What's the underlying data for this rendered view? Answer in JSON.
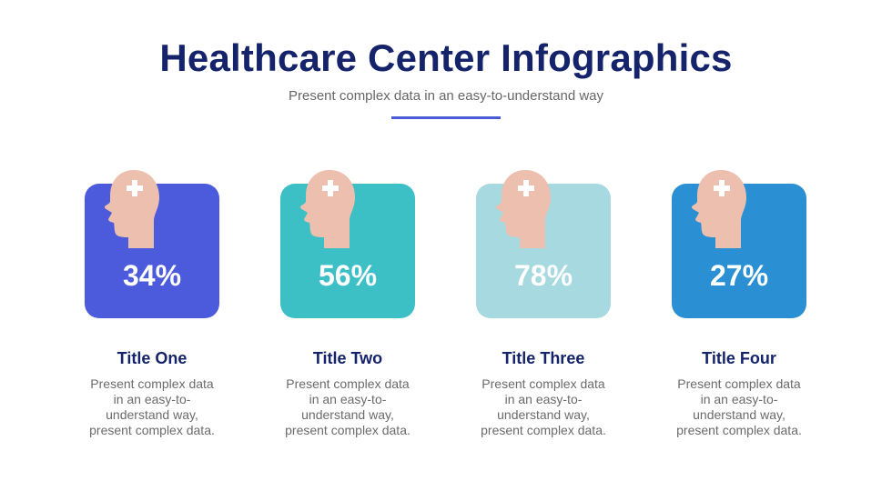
{
  "header": {
    "title": "Healthcare Center Infographics",
    "subtitle": "Present complex data in an easy-to-understand way"
  },
  "colors": {
    "title": "#14236a",
    "accent": "#4b5bd8",
    "head": "#ecbfae",
    "cross": "#ffffff"
  },
  "cards": [
    {
      "percent": "34%",
      "title": "Title One",
      "desc_lines": [
        "Present complex data",
        "in an easy-to-",
        "understand way,",
        "present complex data."
      ],
      "color": "#4c5bdb",
      "icon": "head-medical-cross-icon"
    },
    {
      "percent": "56%",
      "title": "Title Two",
      "desc_lines": [
        "Present complex data",
        "in an easy-to-",
        "understand way,",
        "present complex data."
      ],
      "color": "#3dbfc6",
      "icon": "head-medical-cross-icon"
    },
    {
      "percent": "78%",
      "title": "Title Three",
      "desc_lines": [
        "Present complex data",
        "in an easy-to-",
        "understand way,",
        "present complex data."
      ],
      "color": "#a6d9e0",
      "icon": "head-medical-cross-icon"
    },
    {
      "percent": "27%",
      "title": "Title Four",
      "desc_lines": [
        "Present complex data",
        "in an easy-to-",
        "understand way,",
        "present complex data."
      ],
      "color": "#2a8fd3",
      "icon": "head-medical-cross-icon"
    }
  ]
}
